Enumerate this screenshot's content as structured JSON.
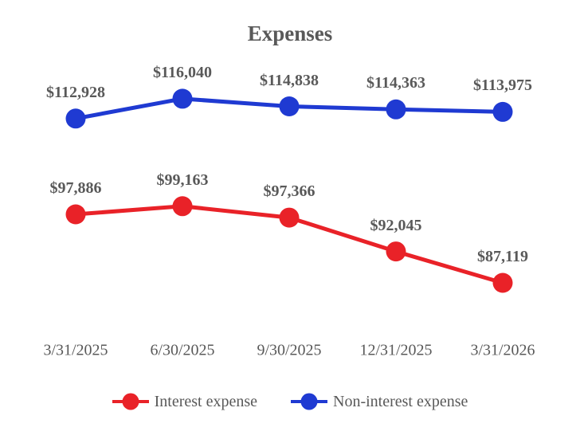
{
  "chart_data": {
    "type": "line",
    "title": "Expenses",
    "x_categories": [
      "3/31/2025",
      "6/30/2025",
      "9/30/2025",
      "12/31/2025",
      "3/31/2026"
    ],
    "series": [
      {
        "name": "Interest expense",
        "color": "#e92228",
        "values": [
          97886,
          99163,
          97366,
          92045,
          87119
        ],
        "labels": [
          "$97,886",
          "$99,163",
          "$97,366",
          "$92,045",
          "$87,119"
        ]
      },
      {
        "name": "Non-interest expense",
        "color": "#1f3ad2",
        "values": [
          112928,
          116040,
          114838,
          114363,
          113975
        ],
        "labels": [
          "$112,928",
          "$116,040",
          "$114,838",
          "$114,363",
          "$113,975"
        ]
      }
    ],
    "ylim": [
      85000,
      120000
    ],
    "grid": false,
    "legend_position": "bottom",
    "text_color": "#595959"
  }
}
